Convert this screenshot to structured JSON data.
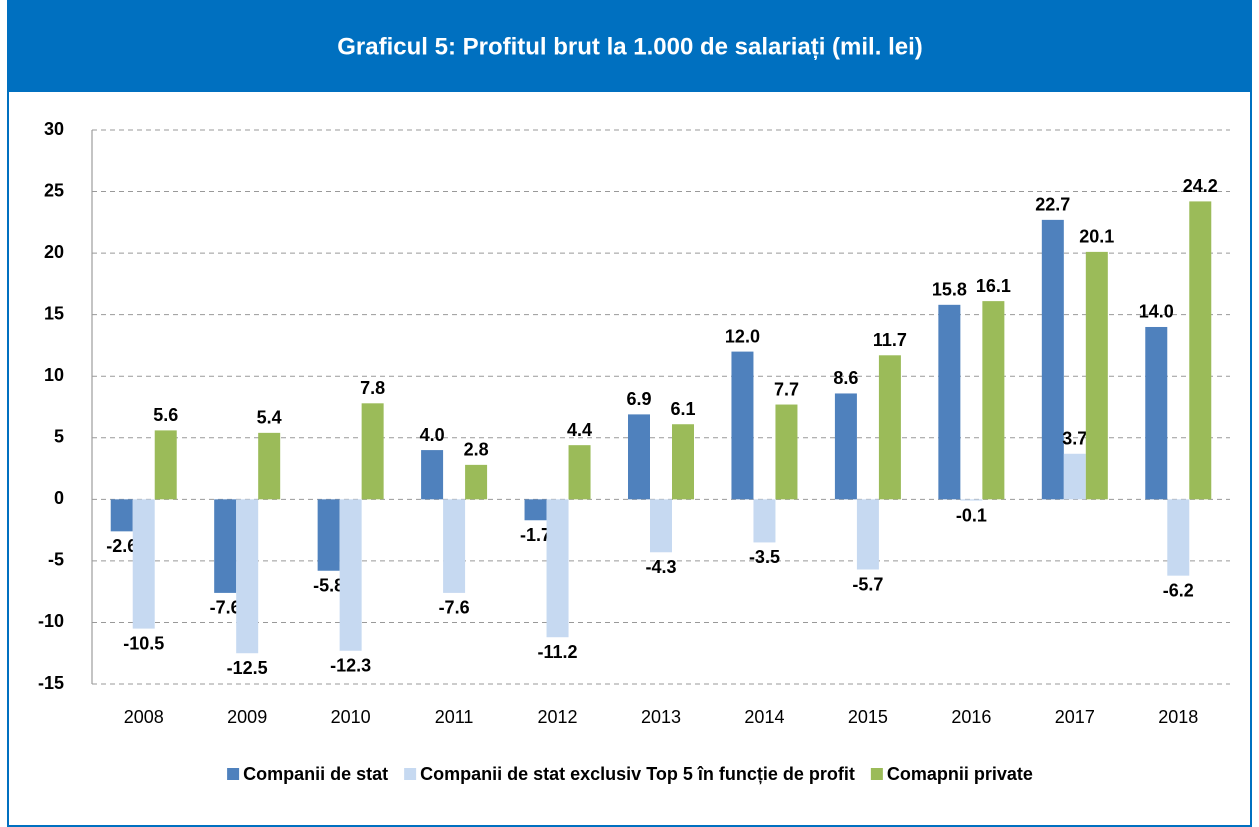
{
  "chart_data": {
    "type": "bar",
    "title": "Graficul 5: Profitul brut la 1.000 de salariați (mil. lei)",
    "categories": [
      "2008",
      "2009",
      "2010",
      "2011",
      "2012",
      "2013",
      "2014",
      "2015",
      "2016",
      "2017",
      "2018"
    ],
    "series": [
      {
        "name": "Companii de stat",
        "color": "#4f81bd",
        "values": [
          -2.6,
          -7.6,
          -5.8,
          4.0,
          -1.7,
          6.9,
          12.0,
          8.6,
          15.8,
          22.7,
          14.0
        ],
        "value_labels": [
          "-2.6",
          "-7.6",
          "-5.8",
          "4.0",
          "-1.7",
          "6.9",
          "12.0",
          "8.6",
          "15.8",
          "22.7",
          "14.0"
        ]
      },
      {
        "name": "Companii de stat exclusiv Top 5 în funcție de profit",
        "color": "#c6d9f1",
        "values": [
          -10.5,
          -12.5,
          -12.3,
          -7.6,
          -11.2,
          -4.3,
          -3.5,
          -5.7,
          -0.1,
          3.7,
          -6.2
        ],
        "value_labels": [
          "-10.5",
          "-12.5",
          "-12.3",
          "-7.6",
          "-11.2",
          "-4.3",
          "-3.5",
          "-5.7",
          "-0.1",
          "3.7",
          "-6.2"
        ]
      },
      {
        "name": "Comapnii private",
        "color": "#9bbb59",
        "values": [
          5.6,
          5.4,
          7.8,
          2.8,
          4.4,
          6.1,
          7.7,
          11.7,
          16.1,
          20.1,
          24.2
        ],
        "value_labels": [
          "5.6",
          "5.4",
          "7.8",
          "2.8",
          "4.4",
          "6.1",
          "7.7",
          "11.7",
          "16.1",
          "20.1",
          "24.2"
        ]
      }
    ],
    "ylim": [
      -15,
      30
    ],
    "yticks": [
      -15,
      -10,
      -5,
      0,
      5,
      10,
      15,
      20,
      25,
      30
    ],
    "grid": true
  }
}
